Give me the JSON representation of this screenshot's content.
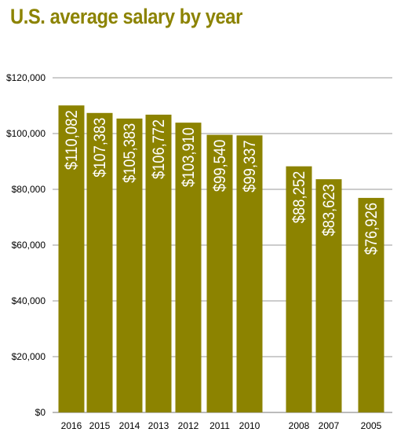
{
  "chart_data": {
    "type": "bar",
    "title": "U.S. average salary by year",
    "xlabel": "",
    "ylabel": "",
    "ylim": [
      0,
      120000
    ],
    "yticks": [
      "$0",
      "$20,000",
      "$40,000",
      "$60,000",
      "$80,000",
      "$100,000",
      "$120,000"
    ],
    "categories": [
      "2016",
      "2015",
      "2014",
      "2013",
      "2012",
      "2011",
      "2010",
      "2008",
      "2007",
      "2005"
    ],
    "values": [
      110082,
      107383,
      105383,
      106772,
      103910,
      99540,
      99337,
      88252,
      83623,
      76926
    ],
    "data_labels": [
      "$110,082",
      "$107,383",
      "$105,383",
      "$106,772",
      "$103,910",
      "$99,540",
      "$99,337",
      "$88,252",
      "$83,623",
      "$76,926"
    ],
    "grid": "horizontal",
    "bar_color": "#8c8300",
    "grid_color": "#9a9a9a"
  }
}
